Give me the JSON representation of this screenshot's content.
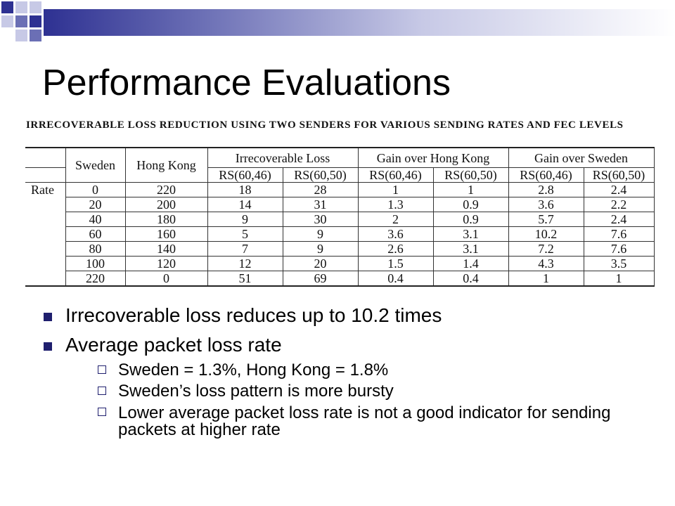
{
  "slide": {
    "title": "Performance Evaluations",
    "caption": "IRRECOVERABLE LOSS REDUCTION USING TWO SENDERS FOR VARIOUS SENDING RATES AND FEC LEVELS"
  },
  "colors": {
    "accent_dark": "#2e3192",
    "accent_mid": "#6b6fb5",
    "accent_light": "#c7c9e6",
    "bullet": "#1f1f6e"
  },
  "table": {
    "header_groups": [
      "Sweden",
      "Hong Kong",
      "Irrecoverable Loss",
      "Gain over Hong Kong",
      "Gain over Sweden"
    ],
    "sub_headers": [
      "RS(60,46)",
      "RS(60,50)",
      "RS(60,46)",
      "RS(60,50)",
      "RS(60,46)",
      "RS(60,50)"
    ],
    "row_label": "Rate",
    "rows": [
      [
        "0",
        "220",
        "18",
        "28",
        "1",
        "1",
        "2.8",
        "2.4"
      ],
      [
        "20",
        "200",
        "14",
        "31",
        "1.3",
        "0.9",
        "3.6",
        "2.2"
      ],
      [
        "40",
        "180",
        "9",
        "30",
        "2",
        "0.9",
        "5.7",
        "2.4"
      ],
      [
        "60",
        "160",
        "5",
        "9",
        "3.6",
        "3.1",
        "10.2",
        "7.6"
      ],
      [
        "80",
        "140",
        "7",
        "9",
        "2.6",
        "3.1",
        "7.2",
        "7.6"
      ],
      [
        "100",
        "120",
        "12",
        "20",
        "1.5",
        "1.4",
        "4.3",
        "3.5"
      ],
      [
        "220",
        "0",
        "51",
        "69",
        "0.4",
        "0.4",
        "1",
        "1"
      ]
    ]
  },
  "bullets": [
    {
      "text": "Irrecoverable loss reduces up to 10.2 times",
      "sub": []
    },
    {
      "text": "Average packet loss rate",
      "sub": [
        "Sweden = 1.3%, Hong Kong = 1.8%",
        "Sweden’s loss pattern is more bursty",
        "Lower average packet loss rate is not a good indicator for sending packets at higher rate"
      ]
    }
  ]
}
